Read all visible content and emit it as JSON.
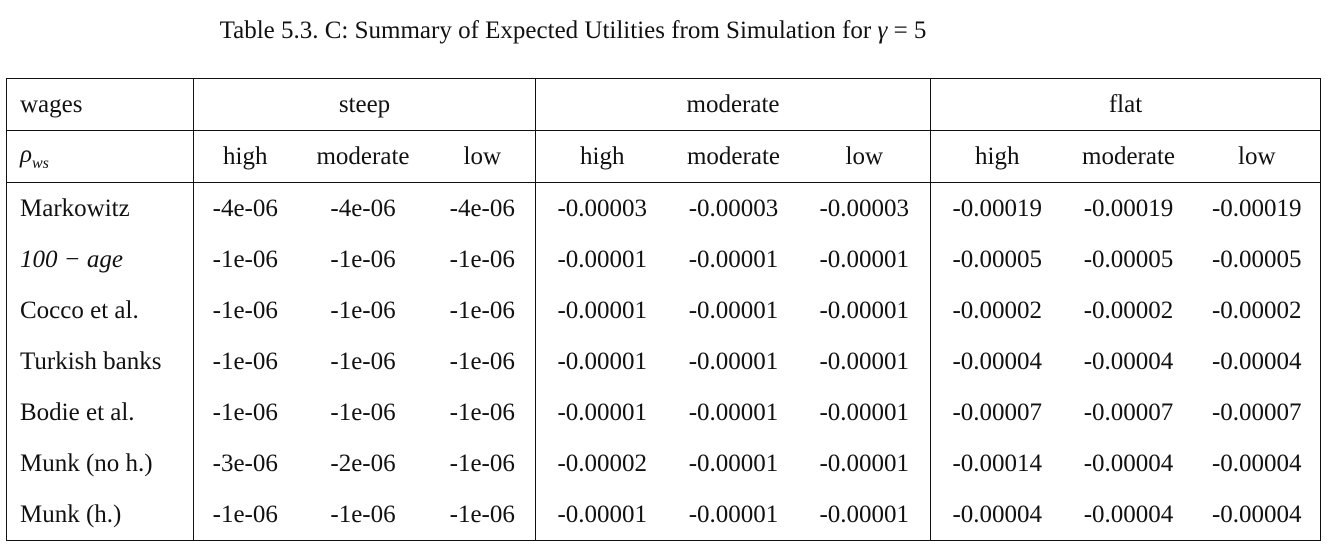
{
  "caption": {
    "prefix": "Table 5.3. C: Summary of Expected Utilities from Simulation for ",
    "symbol": "γ",
    "equals": "= 5"
  },
  "header": {
    "row1_label": "wages",
    "groups": [
      "steep",
      "moderate",
      "flat"
    ],
    "row2_label_symbol": "ρ",
    "row2_label_sub": "ws",
    "subcols": [
      "high",
      "moderate",
      "low",
      "high",
      "moderate",
      "low",
      "high",
      "moderate",
      "low"
    ]
  },
  "rows": [
    {
      "label": "Markowitz",
      "values": [
        "-4e-06",
        "-4e-06",
        "-4e-06",
        "-0.00003",
        "-0.00003",
        "-0.00003",
        "-0.00019",
        "-0.00019",
        "-0.00019"
      ]
    },
    {
      "label": "100 − age",
      "values": [
        "-1e-06",
        "-1e-06",
        "-1e-06",
        "-0.00001",
        "-0.00001",
        "-0.00001",
        "-0.00005",
        "-0.00005",
        "-0.00005"
      ]
    },
    {
      "label": "Cocco et al.",
      "values": [
        "-1e-06",
        "-1e-06",
        "-1e-06",
        "-0.00001",
        "-0.00001",
        "-0.00001",
        "-0.00002",
        "-0.00002",
        "-0.00002"
      ]
    },
    {
      "label": "Turkish banks",
      "values": [
        "-1e-06",
        "-1e-06",
        "-1e-06",
        "-0.00001",
        "-0.00001",
        "-0.00001",
        "-0.00004",
        "-0.00004",
        "-0.00004"
      ]
    },
    {
      "label": "Bodie et al.",
      "values": [
        "-1e-06",
        "-1e-06",
        "-1e-06",
        "-0.00001",
        "-0.00001",
        "-0.00001",
        "-0.00007",
        "-0.00007",
        "-0.00007"
      ]
    },
    {
      "label": "Munk (no h.)",
      "values": [
        "-3e-06",
        "-2e-06",
        "-1e-06",
        "-0.00002",
        "-0.00001",
        "-0.00001",
        "-0.00014",
        "-0.00004",
        "-0.00004"
      ]
    },
    {
      "label": "Munk (h.)",
      "values": [
        "-1e-06",
        "-1e-06",
        "-1e-06",
        "-0.00001",
        "-0.00001",
        "-0.00001",
        "-0.00004",
        "-0.00004",
        "-0.00004"
      ]
    }
  ]
}
